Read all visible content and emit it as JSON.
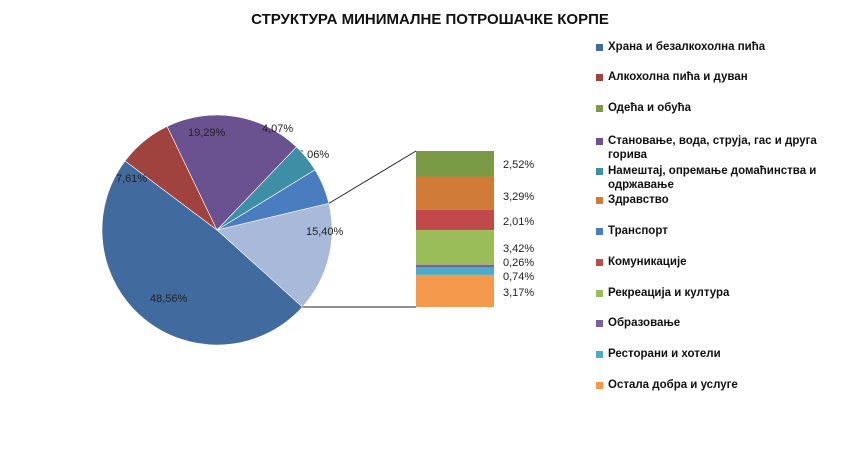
{
  "chart_data": {
    "type": "pie-of-bar",
    "title": "СТРУКТУРА МИНИМАЛНЕ ПОТРОШАЧКЕ КОРПЕ",
    "legend_position": "right",
    "pie": [
      {
        "name": "Транспорт",
        "value": 5.06,
        "label": "5,06%",
        "color": "#4a7dc0"
      },
      {
        "name": "other",
        "value": 15.4,
        "label": "15,40%",
        "color": "#a9b9d9"
      },
      {
        "name": "Храна и безалкохолна пића",
        "value": 48.56,
        "label": "48,56%",
        "color": "#416a9f"
      },
      {
        "name": "Алкохолна пића и дуван",
        "value": 7.61,
        "label": "7,61%",
        "color": "#a0433f"
      },
      {
        "name": "Становање, вода, струја, гас и друга горива",
        "value": 19.29,
        "label": "19,29%",
        "color": "#6a5190"
      },
      {
        "name": "Намештај, опремање домаћинства и одржавање",
        "value": 4.07,
        "label": "4,07%",
        "color": "#3e8fa5"
      }
    ],
    "bar": [
      {
        "name": "Одећа и обућа",
        "value": 2.52,
        "label": "2,52%",
        "color": "#7b9a45"
      },
      {
        "name": "Здравство",
        "value": 3.29,
        "label": "3,29%",
        "color": "#d17b39"
      },
      {
        "name": "Комуникације",
        "value": 2.01,
        "label": "2,01%",
        "color": "#c0494a"
      },
      {
        "name": "Рекреација и култура",
        "value": 3.42,
        "label": "3,42%",
        "color": "#9bbd59"
      },
      {
        "name": "Образовање",
        "value": 0.26,
        "label": "0,26%",
        "color": "#7a60a0"
      },
      {
        "name": "Ресторани и хотели",
        "value": 0.74,
        "label": "0,74%",
        "color": "#4bacc8"
      },
      {
        "name": "Остала добра и услуге",
        "value": 3.17,
        "label": "3,17%",
        "color": "#f59a4c"
      }
    ],
    "legend": [
      {
        "label": "Храна и безалкохолна пића",
        "color": "#416a9f"
      },
      {
        "label": "Алкохолна пића и дуван",
        "color": "#a0433f"
      },
      {
        "label": "Одећа и обућа",
        "color": "#7b9a45"
      },
      {
        "label": "Становање, вода, струја, гас и друга горива",
        "color": "#6a5190"
      },
      {
        "label": "Намештај, опремање домаћинства и одржавање",
        "color": "#3e8fa5"
      },
      {
        "label": "Здравство",
        "color": "#d17b39"
      },
      {
        "label": "Транспорт",
        "color": "#4a7dc0"
      },
      {
        "label": "Комуникације",
        "color": "#c0494a"
      },
      {
        "label": "Рекреација и култура",
        "color": "#9bbd59"
      },
      {
        "label": "Образовање",
        "color": "#7a60a0"
      },
      {
        "label": "Ресторани и хотели",
        "color": "#4bacc8"
      },
      {
        "label": "Остала добра и услуге",
        "color": "#f59a4c"
      }
    ]
  }
}
